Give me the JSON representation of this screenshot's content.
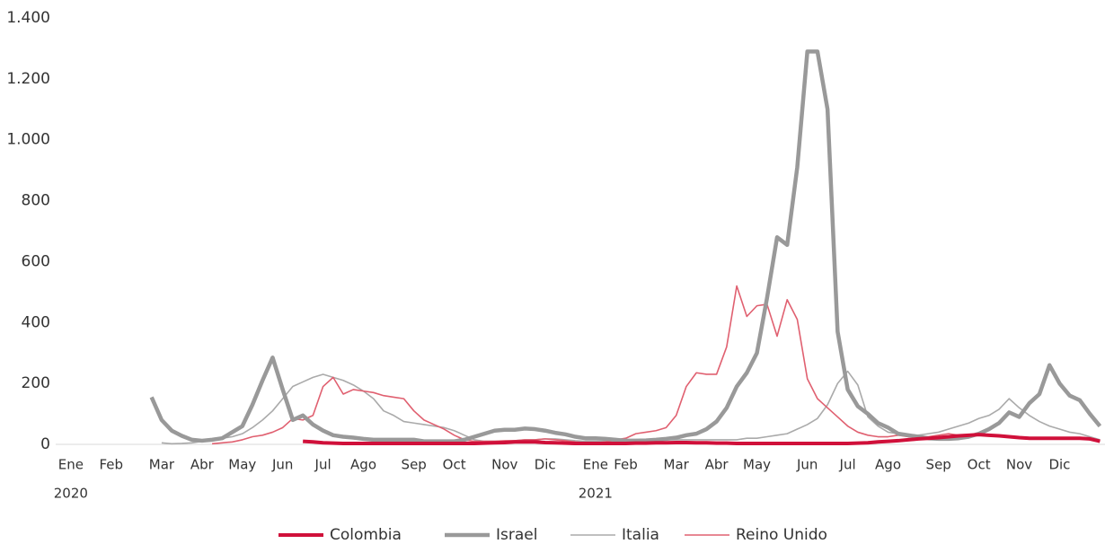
{
  "chart_data": {
    "type": "line",
    "categories": [
      null,
      [
        "Ene",
        "2020"
      ],
      null,
      null,
      null,
      "Feb",
      null,
      null,
      null,
      null,
      "Mar",
      null,
      null,
      null,
      "Abr",
      null,
      null,
      null,
      "May",
      null,
      null,
      null,
      "Jun",
      null,
      null,
      null,
      "Jul",
      null,
      null,
      null,
      "Ago",
      null,
      null,
      null,
      null,
      "Sep",
      null,
      null,
      null,
      "Oct",
      null,
      null,
      null,
      null,
      "Nov",
      null,
      null,
      null,
      "Dic",
      null,
      null,
      null,
      null,
      [
        "Ene",
        "2021"
      ],
      null,
      null,
      "Feb",
      null,
      null,
      null,
      null,
      "Mar",
      null,
      null,
      null,
      "Abr",
      null,
      null,
      null,
      "May",
      null,
      null,
      null,
      null,
      "Jun",
      null,
      null,
      null,
      "Jul",
      null,
      null,
      null,
      "Ago",
      null,
      null,
      null,
      null,
      "Sep",
      null,
      null,
      null,
      "Oct",
      null,
      null,
      null,
      "Nov",
      null,
      null,
      null,
      "Dic",
      null,
      null,
      null,
      null
    ],
    "series": [
      {
        "name": "Colombia",
        "color": "#d0103a",
        "width": 4,
        "values": [
          null,
          null,
          null,
          null,
          null,
          null,
          null,
          null,
          null,
          null,
          null,
          null,
          null,
          null,
          null,
          null,
          null,
          null,
          null,
          null,
          null,
          null,
          null,
          null,
          10,
          8,
          5,
          4,
          3,
          3,
          3,
          3,
          3,
          3,
          3,
          3,
          3,
          3,
          3,
          3,
          3,
          3,
          4,
          5,
          6,
          8,
          8,
          8,
          6,
          5,
          4,
          3,
          3,
          3,
          3,
          3,
          3,
          4,
          4,
          5,
          5,
          6,
          6,
          5,
          5,
          4,
          4,
          3,
          3,
          3,
          3,
          3,
          3,
          3,
          3,
          3,
          3,
          3,
          3,
          4,
          5,
          8,
          10,
          12,
          15,
          18,
          20,
          22,
          25,
          28,
          30,
          32,
          30,
          28,
          25,
          22,
          20,
          20,
          20,
          20,
          20,
          20,
          18,
          10
        ]
      },
      {
        "name": "Israel",
        "color": "#999999",
        "width": 4.5,
        "values": [
          null,
          null,
          null,
          null,
          null,
          null,
          null,
          null,
          null,
          155,
          80,
          45,
          28,
          15,
          12,
          15,
          20,
          40,
          60,
          130,
          210,
          285,
          180,
          80,
          95,
          65,
          45,
          30,
          25,
          22,
          18,
          15,
          15,
          15,
          15,
          15,
          10,
          10,
          10,
          10,
          15,
          25,
          35,
          45,
          48,
          48,
          52,
          50,
          45,
          38,
          33,
          25,
          20,
          20,
          18,
          15,
          12,
          12,
          13,
          15,
          18,
          22,
          30,
          35,
          50,
          75,
          120,
          190,
          235,
          300,
          480,
          680,
          655,
          910,
          1290,
          1290,
          1100,
          370,
          180,
          125,
          100,
          70,
          55,
          35,
          30,
          25,
          20,
          18,
          18,
          20,
          25,
          35,
          50,
          70,
          105,
          90,
          135,
          165,
          260,
          200,
          160,
          145,
          100,
          60
        ]
      },
      {
        "name": "Italia",
        "color": "#aaaaaa",
        "width": 1.6,
        "values": [
          null,
          null,
          null,
          null,
          null,
          null,
          null,
          null,
          null,
          null,
          5,
          2,
          3,
          5,
          10,
          15,
          20,
          25,
          35,
          55,
          80,
          110,
          150,
          190,
          205,
          220,
          230,
          220,
          210,
          195,
          175,
          150,
          110,
          95,
          75,
          70,
          65,
          60,
          55,
          45,
          30,
          15,
          10,
          10,
          10,
          12,
          15,
          15,
          18,
          18,
          15,
          12,
          10,
          10,
          10,
          10,
          10,
          12,
          15,
          15,
          15,
          15,
          15,
          15,
          15,
          15,
          15,
          15,
          20,
          20,
          25,
          30,
          35,
          50,
          65,
          85,
          130,
          200,
          240,
          195,
          90,
          60,
          40,
          35,
          30,
          30,
          35,
          40,
          50,
          60,
          70,
          85,
          95,
          115,
          150,
          120,
          95,
          75,
          60,
          50,
          40,
          35,
          25,
          15
        ]
      },
      {
        "name": "Reino Unido",
        "color": "#e06070",
        "width": 1.6,
        "values": [
          null,
          null,
          null,
          null,
          null,
          null,
          null,
          null,
          null,
          null,
          null,
          null,
          null,
          null,
          null,
          2,
          5,
          8,
          15,
          25,
          30,
          40,
          55,
          85,
          80,
          95,
          190,
          220,
          165,
          180,
          175,
          170,
          160,
          155,
          150,
          110,
          80,
          65,
          50,
          30,
          15,
          10,
          10,
          10,
          12,
          12,
          15,
          15,
          18,
          15,
          12,
          8,
          5,
          5,
          8,
          15,
          20,
          35,
          40,
          45,
          55,
          95,
          190,
          235,
          230,
          230,
          320,
          520,
          420,
          455,
          460,
          355,
          475,
          410,
          215,
          150,
          120,
          90,
          60,
          40,
          30,
          25,
          25,
          30,
          25,
          25,
          25,
          30,
          35,
          30,
          30,
          30,
          30,
          25,
          25,
          25,
          20,
          20,
          20,
          20,
          20,
          20,
          15,
          10
        ]
      }
    ],
    "ylim": [
      0,
      1400
    ],
    "yticks": [
      0,
      200,
      400,
      600,
      800,
      {
        "value": 1000,
        "label": "1.000"
      },
      {
        "value": 1200,
        "label": "1.200"
      },
      {
        "value": 1400,
        "label": "1.400"
      }
    ],
    "grid": false,
    "legend": "bottom"
  }
}
